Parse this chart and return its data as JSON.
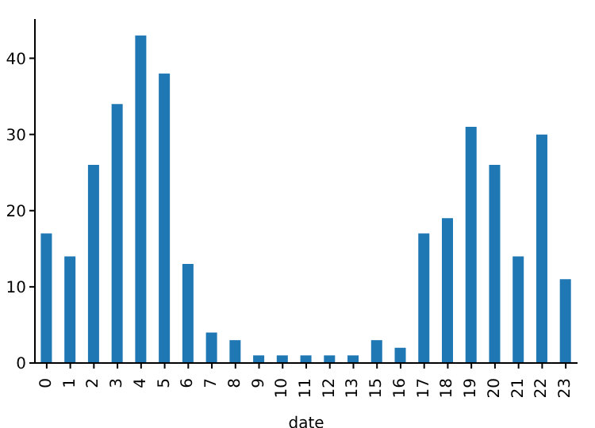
{
  "chart_data": {
    "type": "bar",
    "xlabel": "date",
    "categories": [
      "0",
      "1",
      "2",
      "3",
      "4",
      "5",
      "6",
      "7",
      "8",
      "9",
      "10",
      "11",
      "12",
      "13",
      "15",
      "16",
      "17",
      "18",
      "19",
      "20",
      "21",
      "22",
      "23"
    ],
    "values": [
      17,
      14,
      26,
      34,
      43,
      38,
      13,
      4,
      3,
      1,
      1,
      1,
      1,
      1,
      3,
      2,
      17,
      19,
      31,
      26,
      14,
      30,
      11
    ],
    "color": "#1f77b4",
    "ylim": [
      0,
      45.15
    ],
    "yticks": [
      0,
      10,
      20,
      30,
      40
    ],
    "grid": false,
    "legend": false
  }
}
